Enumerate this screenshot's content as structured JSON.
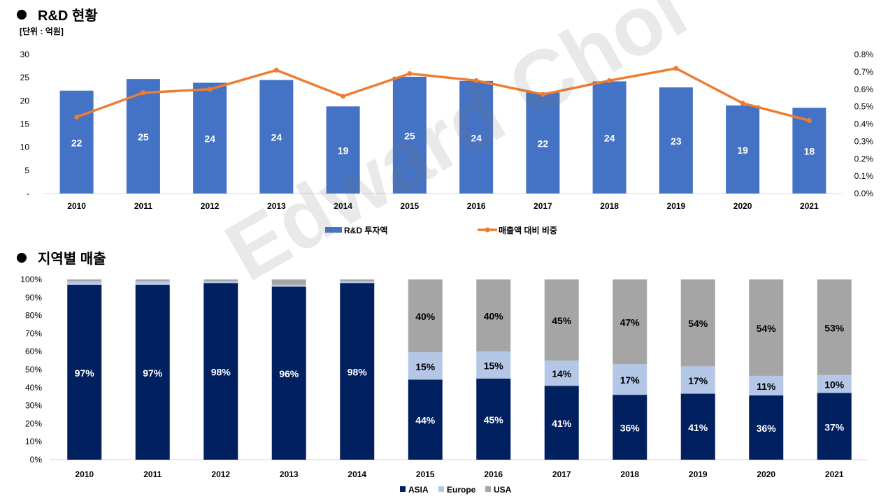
{
  "titles": {
    "rd": "R&D 현황",
    "unit": "[단위 : 억원]",
    "region": "지역별 매출"
  },
  "watermark": "Edward Choi",
  "colors": {
    "bar": "#4472C4",
    "line": "#ED7D31",
    "asia": "#002060",
    "europe": "#B4C7E7",
    "usa": "#A5A5A5"
  },
  "chart_data": [
    {
      "type": "bar",
      "title": "R&D 현황",
      "categories": [
        "2010",
        "2011",
        "2012",
        "2013",
        "2014",
        "2015",
        "2016",
        "2017",
        "2018",
        "2019",
        "2020",
        "2021"
      ],
      "series": [
        {
          "name": "R&D 투자액",
          "type": "bar",
          "axis": "left",
          "values": [
            22.2,
            24.7,
            23.9,
            24.5,
            18.8,
            25.2,
            24.3,
            21.8,
            24.2,
            22.9,
            19.0,
            18.5
          ],
          "labels": [
            "22",
            "25",
            "24",
            "24",
            "19",
            "25",
            "24",
            "22",
            "24",
            "23",
            "19",
            "18"
          ]
        },
        {
          "name": "매출액 대비 비중",
          "type": "line",
          "axis": "right",
          "values": [
            0.44,
            0.58,
            0.6,
            0.71,
            0.56,
            0.69,
            0.65,
            0.57,
            0.65,
            0.72,
            0.52,
            0.42
          ]
        }
      ],
      "y_left": {
        "min": 0,
        "max": 30,
        "ticks": [
          "-",
          "5",
          "10",
          "15",
          "20",
          "25",
          "30"
        ]
      },
      "y_right": {
        "min": 0,
        "max": 0.8,
        "ticks": [
          "0.0%",
          "0.1%",
          "0.2%",
          "0.3%",
          "0.4%",
          "0.5%",
          "0.6%",
          "0.7%",
          "0.8%"
        ]
      },
      "legend": [
        "R&D 투자액",
        "매출액 대비 비중"
      ],
      "legend_position": "bottom"
    },
    {
      "type": "bar",
      "stacked": true,
      "percent": true,
      "title": "지역별 매출",
      "categories": [
        "2010",
        "2011",
        "2012",
        "2013",
        "2014",
        "2015",
        "2016",
        "2017",
        "2018",
        "2019",
        "2020",
        "2021"
      ],
      "series": [
        {
          "name": "ASIA",
          "values": [
            97,
            97,
            98,
            96,
            98,
            44,
            45,
            41,
            36,
            41,
            36,
            37
          ]
        },
        {
          "name": "Europe",
          "values": [
            2,
            2,
            1,
            1,
            1,
            15,
            15,
            14,
            17,
            17,
            11,
            10
          ]
        },
        {
          "name": "USA",
          "values": [
            1,
            1,
            1,
            3,
            1,
            40,
            40,
            45,
            47,
            54,
            54,
            53
          ]
        }
      ],
      "show_labels": {
        "ASIA": [
          true,
          true,
          true,
          true,
          true,
          true,
          true,
          true,
          true,
          true,
          true,
          true
        ],
        "Europe": [
          false,
          false,
          false,
          false,
          false,
          true,
          true,
          true,
          true,
          true,
          true,
          true
        ],
        "USA": [
          false,
          false,
          false,
          false,
          false,
          true,
          true,
          true,
          true,
          true,
          true,
          true
        ]
      },
      "y_ticks": [
        "0%",
        "10%",
        "20%",
        "30%",
        "40%",
        "50%",
        "60%",
        "70%",
        "80%",
        "90%",
        "100%"
      ],
      "legend": [
        "ASIA",
        "Europe",
        "USA"
      ],
      "legend_position": "bottom"
    }
  ]
}
